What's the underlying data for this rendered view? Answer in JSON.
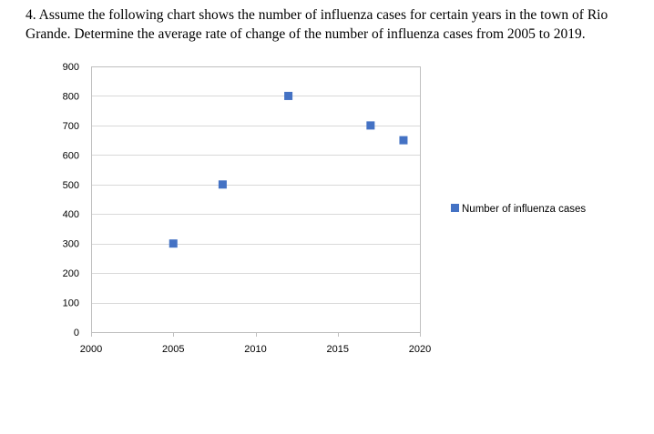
{
  "question": {
    "text": "4. Assume the following chart shows the number of influenza cases for certain years in the town of Rio Grande.  Determine the average rate of change of the number of influenza cases from 2005 to 2019."
  },
  "chart_data": {
    "type": "scatter",
    "title": "",
    "xlabel": "",
    "ylabel": "",
    "xlim": [
      2000,
      2020
    ],
    "ylim": [
      0,
      900
    ],
    "x_ticks": [
      2000,
      2005,
      2010,
      2015,
      2020
    ],
    "y_ticks": [
      0,
      100,
      200,
      300,
      400,
      500,
      600,
      700,
      800,
      900
    ],
    "grid": "horizontal",
    "legend_position": "right",
    "series": [
      {
        "name": "Number of influenza cases",
        "color": "#4472c4",
        "marker": "square",
        "x": [
          2005,
          2008,
          2012,
          2017,
          2019
        ],
        "y": [
          300,
          500,
          800,
          700,
          650
        ]
      }
    ]
  }
}
